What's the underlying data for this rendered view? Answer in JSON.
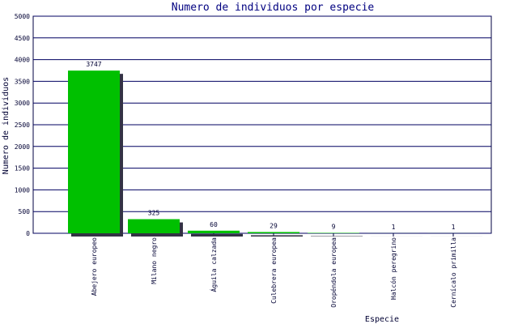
{
  "chart_data": {
    "type": "bar",
    "title": "Numero de individuos por especie",
    "x_label": "Especie",
    "y_label": "Numero de individuos",
    "categories": [
      "Abejero europeo",
      "Milano negro",
      "Águila calzada",
      "Culebrera europea",
      "Oropéndola europea",
      "Halcón peregrino",
      "Cernícalo primilla"
    ],
    "values": [
      3747,
      325,
      60,
      29,
      9,
      1,
      1
    ],
    "color": "#00c000",
    "shadow_color": "#333344",
    "ylim": [
      0,
      5000
    ],
    "yticks": [
      0,
      500,
      1000,
      1500,
      2000,
      2500,
      3000,
      3500,
      4000,
      4500,
      5000
    ],
    "grid": true
  }
}
